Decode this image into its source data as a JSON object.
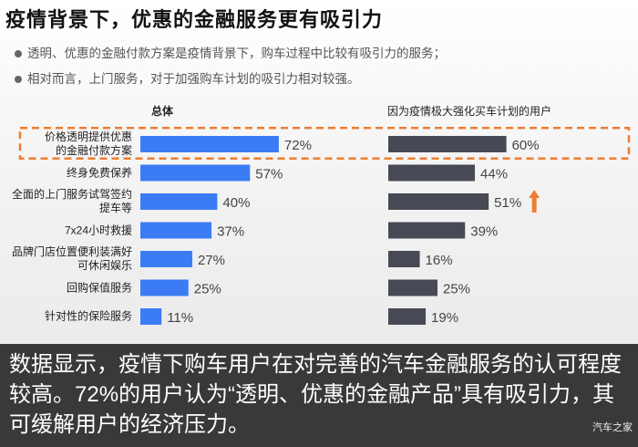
{
  "title": "疫情背景下，优惠的金融服务更有吸引力",
  "bullets": [
    "透明、优惠的金融付款方案是疫情背景下，购车过程中比较有吸引力的服务；",
    "相对而言，上门服务，对于加强购车计划的吸引力相对较强。"
  ],
  "chart_data": {
    "type": "bar",
    "orientation": "horizontal",
    "categories": [
      "价格透明提供优惠\n的金融付款方案",
      "终身免费保养",
      "全面的上门服务试驾签约\n提车等",
      "7x24小时救援",
      "品牌门店位置便利装满好\n可休闲娱乐",
      "回购保值服务",
      "针对性的保险服务"
    ],
    "series": [
      {
        "name": "总体",
        "values": [
          72,
          57,
          40,
          37,
          27,
          25,
          11
        ],
        "labels": [
          "72%",
          "57%",
          "40%",
          "37%",
          "27%",
          "25%",
          "11%"
        ],
        "color": "#3b7cf5"
      },
      {
        "name": "因为疫情极大强化买车计划的用户",
        "values": [
          60,
          44,
          51,
          39,
          16,
          25,
          19
        ],
        "labels": [
          "60%",
          "44%",
          "51%",
          "39%",
          "16%",
          "25%",
          "19%"
        ],
        "color": "#474a54"
      }
    ],
    "unit": "%",
    "highlight_category_index": 0,
    "highlight_color": "#ed7d31",
    "up_arrow_series_index": 1,
    "up_arrow_category_index": 2,
    "grid": false
  },
  "caption": "数据显示，疫情下购车用户在对完善的汽车金融服务的认可程度较高。72%的用户认为“透明、优惠的金融产品”具有吸引力，其可缓解用户的经济压力。",
  "watermark": "汽车之家"
}
